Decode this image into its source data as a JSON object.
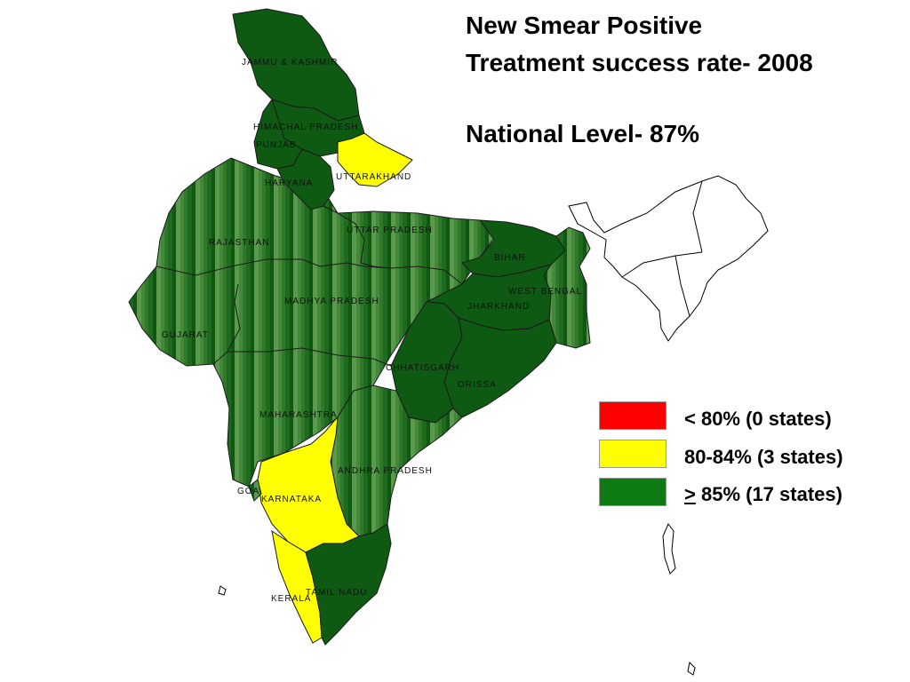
{
  "title": {
    "line1": "New Smear Positive",
    "line2": "Treatment success rate- 2008"
  },
  "national_level": "National Level- 87%",
  "colors": {
    "red": "#ff0000",
    "yellow": "#ffff00",
    "green": "#0e6e12",
    "dark_green": "#0e5a12"
  },
  "legend": {
    "red": {
      "text": "< 80% (0 states)"
    },
    "yellow": {
      "text": "80-84% (3 states)"
    },
    "green": {
      "symbol": ">",
      "text": " 85% (17 states)"
    }
  },
  "states": {
    "jammu_kashmir": "JAMMU & KASHMIR",
    "himachal": "HIMACHAL PRADESH",
    "punjab": "PUNJAB",
    "haryana": "HARYANA",
    "uttarakhand": "UTTARAKHAND",
    "rajasthan": "RAJASTHAN",
    "uttar_pradesh": "UTTAR PRADESH",
    "bihar": "BIHAR",
    "west_bengal": "WEST BENGAL",
    "jharkhand": "JHARKHAND",
    "madhya_pradesh": "MADHYA PRADESH",
    "gujarat": "GUJARAT",
    "chhatisgarh": "CHHATISGARH",
    "orissa": "ORISSA",
    "maharashtra": "MAHARASHTRA",
    "andhra_pradesh": "ANDHRA PRADESH",
    "goa": "GOA",
    "karnataka": "KARNATAKA",
    "kerala": "KERALA",
    "tamil_nadu": "TAMIL NADU"
  }
}
